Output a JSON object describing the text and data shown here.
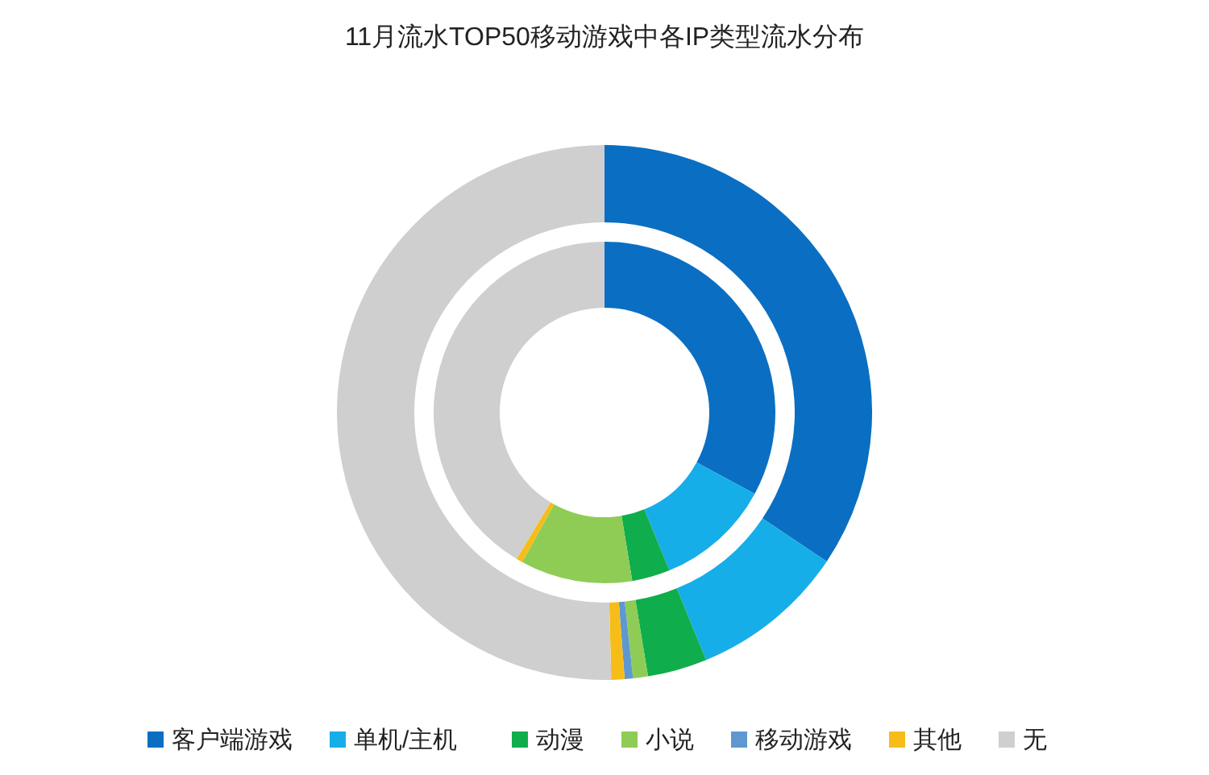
{
  "chart_data": {
    "type": "donut",
    "title": "11月流水TOP50移动游戏中各IP类型流水分布",
    "categories": [
      "客户端游戏",
      "单机/主机",
      "动漫",
      "小说",
      "移动游戏",
      "其他",
      "无"
    ],
    "colors": [
      "#0a6fc2",
      "#16aee8",
      "#10ad4c",
      "#8fcc56",
      "#5f98d0",
      "#f6bd18",
      "#d0cfcf"
    ],
    "series": [
      {
        "values": [
          34.4,
          9.4,
          3.6,
          0.9,
          0.5,
          0.8,
          50.4
        ]
      },
      {
        "values": [
          32.9,
          10.9,
          3.6,
          10.6,
          0,
          0.6,
          41.4
        ]
      }
    ],
    "legend": "bottom"
  }
}
